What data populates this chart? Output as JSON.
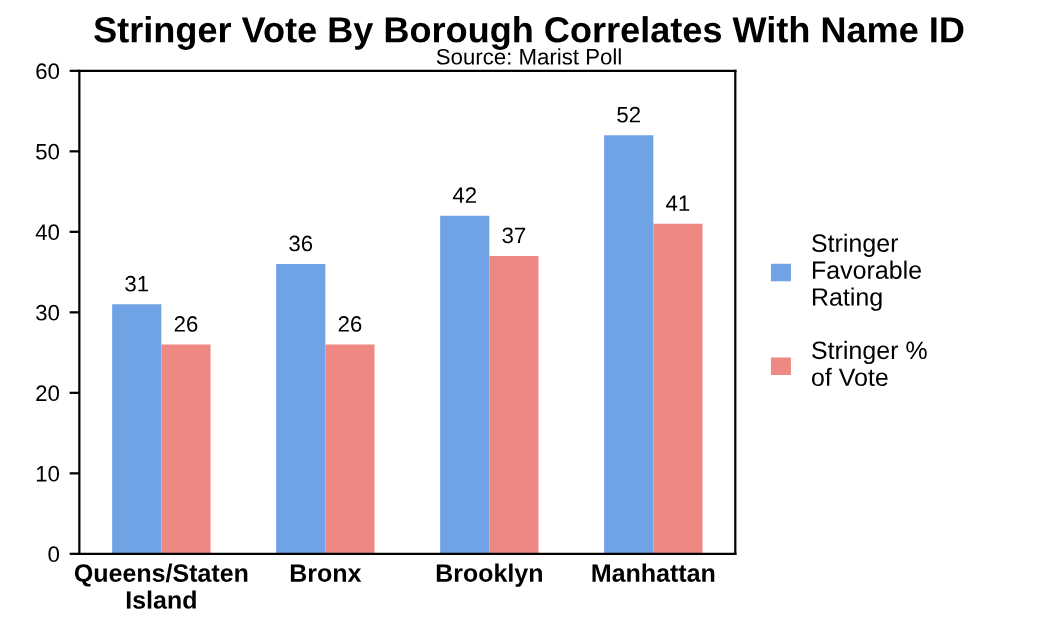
{
  "chart_data": {
    "type": "bar",
    "title": "Stringer Vote By Borough Correlates With Name ID",
    "subtitle": "Source: Marist Poll",
    "categories": [
      "Queens/Staten\nIsland",
      "Bronx",
      "Brooklyn",
      "Manhattan"
    ],
    "series": [
      {
        "name": "Stringer\nFavorable\nRating",
        "color": "#6fa3e6",
        "values": [
          31,
          36,
          42,
          52
        ]
      },
      {
        "name": "Stringer %\nof Vote",
        "color": "#ee8883",
        "values": [
          26,
          26,
          37,
          41
        ]
      }
    ],
    "ylim": [
      0,
      60
    ],
    "yticks": [
      0,
      10,
      20,
      30,
      40,
      50,
      60
    ],
    "grid": false,
    "legend": "right",
    "data_labels": true
  }
}
